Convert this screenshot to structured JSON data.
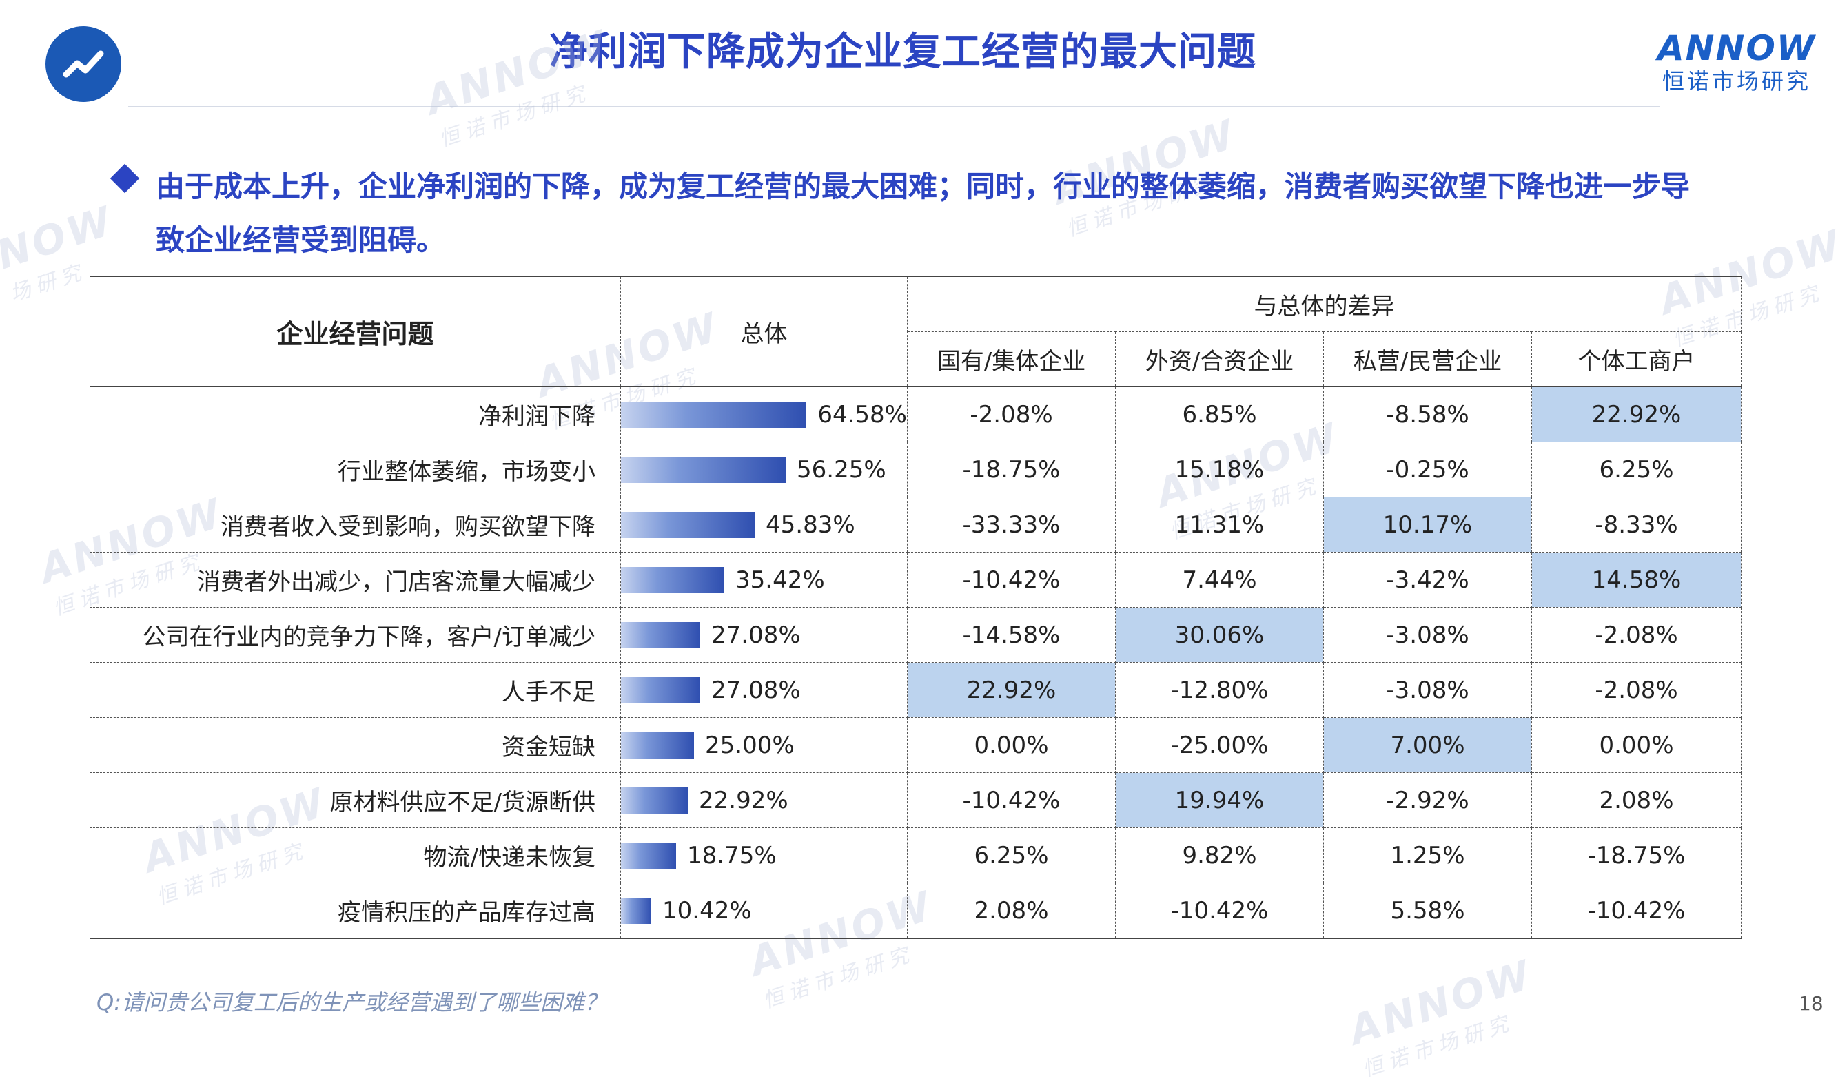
{
  "header": {
    "title": "净利润下降成为企业复工经营的最大问题",
    "brand_name": "ANNOW",
    "brand_sub": "恒诺市场研究"
  },
  "headline": "由于成本上升，企业净利润的下降，成为复工经营的最大困难；同时，行业的整体萎缩，消费者购买欲望下降也进一步导致企业经营受到阻碍。",
  "table": {
    "corner_label": "企业经营问题",
    "total_label": "总体",
    "diff_label": "与总体的差异",
    "segments": [
      "国有/集体企业",
      "外资/合资企业",
      "私营/民营企业",
      "个体工商户"
    ],
    "rows": [
      {
        "label": "净利润下降",
        "total": "64.58%",
        "total_value": 64.58,
        "diffs": [
          "-2.08%",
          "6.85%",
          "-8.58%",
          "22.92%"
        ],
        "highlight": [
          false,
          false,
          false,
          true
        ]
      },
      {
        "label": "行业整体萎缩，市场变小",
        "total": "56.25%",
        "total_value": 56.25,
        "diffs": [
          "-18.75%",
          "15.18%",
          "-0.25%",
          "6.25%"
        ],
        "highlight": [
          false,
          false,
          false,
          false
        ]
      },
      {
        "label": "消费者收入受到影响，购买欲望下降",
        "total": "45.83%",
        "total_value": 45.83,
        "diffs": [
          "-33.33%",
          "11.31%",
          "10.17%",
          "-8.33%"
        ],
        "highlight": [
          false,
          false,
          true,
          false
        ]
      },
      {
        "label": "消费者外出减少，门店客流量大幅减少",
        "total": "35.42%",
        "total_value": 35.42,
        "diffs": [
          "-10.42%",
          "7.44%",
          "-3.42%",
          "14.58%"
        ],
        "highlight": [
          false,
          false,
          false,
          true
        ]
      },
      {
        "label": "公司在行业内的竞争力下降，客户/订单减少",
        "total": "27.08%",
        "total_value": 27.08,
        "diffs": [
          "-14.58%",
          "30.06%",
          "-3.08%",
          "-2.08%"
        ],
        "highlight": [
          false,
          true,
          false,
          false
        ]
      },
      {
        "label": "人手不足",
        "total": "27.08%",
        "total_value": 27.08,
        "diffs": [
          "22.92%",
          "-12.80%",
          "-3.08%",
          "-2.08%"
        ],
        "highlight": [
          true,
          false,
          false,
          false
        ]
      },
      {
        "label": "资金短缺",
        "total": "25.00%",
        "total_value": 25.0,
        "diffs": [
          "0.00%",
          "-25.00%",
          "7.00%",
          "0.00%"
        ],
        "highlight": [
          false,
          false,
          true,
          false
        ]
      },
      {
        "label": "原材料供应不足/货源断供",
        "total": "22.92%",
        "total_value": 22.92,
        "diffs": [
          "-10.42%",
          "19.94%",
          "-2.92%",
          "2.08%"
        ],
        "highlight": [
          false,
          true,
          false,
          false
        ]
      },
      {
        "label": "物流/快递未恢复",
        "total": "18.75%",
        "total_value": 18.75,
        "diffs": [
          "6.25%",
          "9.82%",
          "1.25%",
          "-18.75%"
        ],
        "highlight": [
          false,
          false,
          false,
          false
        ]
      },
      {
        "label": "疫情积压的产品库存过高",
        "total": "10.42%",
        "total_value": 10.42,
        "diffs": [
          "2.08%",
          "-10.42%",
          "5.58%",
          "-10.42%"
        ],
        "highlight": [
          false,
          false,
          false,
          false
        ]
      }
    ]
  },
  "footnote": "Q:请问贵公司复工后的生产或经营遇到了哪些困难？",
  "page_number": "18",
  "colors": {
    "accent": "#2b44c2",
    "highlight": "#bcd3ee",
    "bar_dark": "#2f4fb0"
  },
  "icons": {
    "logo": "trend-line-icon",
    "bullet": "diamond-bullet-icon"
  }
}
